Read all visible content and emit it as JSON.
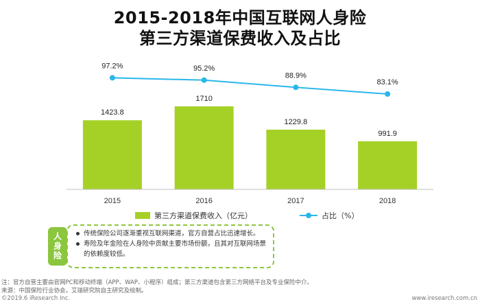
{
  "title_line1": "2015-2018年中国互联网人身险",
  "title_line2": "第三方渠道保费收入及占比",
  "chart_data": {
    "type": "bar",
    "categories": [
      "2015",
      "2016",
      "2017",
      "2018"
    ],
    "series": [
      {
        "name": "第三方渠道保费收入（亿元）",
        "type": "bar",
        "values": [
          1423.8,
          1710,
          1229.8,
          991.9
        ],
        "labels": [
          "1423.8",
          "1710",
          "1229.8",
          "991.9"
        ],
        "color": "#a5d127"
      },
      {
        "name": "占比（%）",
        "type": "line",
        "values": [
          97.2,
          95.2,
          88.9,
          83.1
        ],
        "labels": [
          "97.2%",
          "95.2%",
          "88.9%",
          "83.1%"
        ],
        "color": "#29b7e9"
      }
    ],
    "bar_ylim": [
      0,
      2600
    ],
    "line_ylim": [
      0,
      110
    ],
    "legend_position": "bottom"
  },
  "note": {
    "badge": "人身险",
    "items": [
      "传统保险公司逐渐重视互联网渠道，官方自营占比迅速增长。",
      "寿险及年金险在人身险中贡献主要市场份额，且其对互联网场景的依赖度较低。"
    ]
  },
  "footnote1": "注：官方自营主要由官网PC和移动终端（APP、WAP、小程序）组成；第三方渠道包含第三方网络平台及专业保险中介。",
  "footnote2": "来源：中国保险行业协会，艾瑞研究院自主研究及绘制。",
  "copyright": "©2019.6 iResearch Inc.",
  "site": "www.iresearch.com.cn"
}
